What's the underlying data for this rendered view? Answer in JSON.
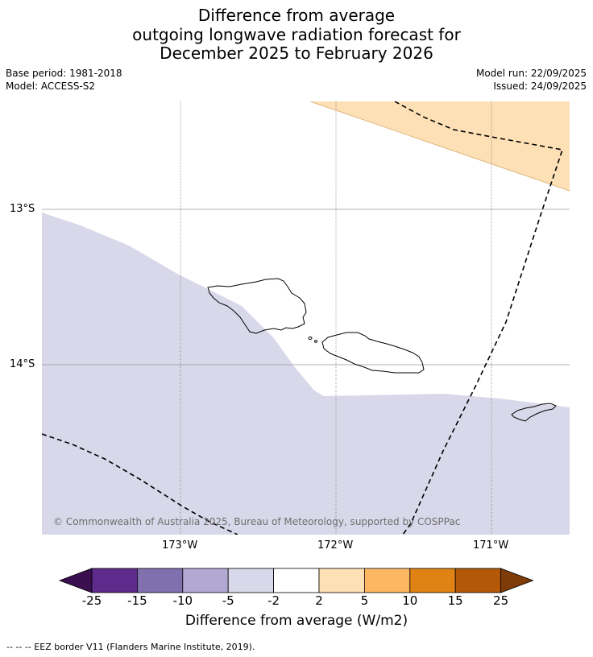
{
  "title": {
    "line1": "Difference from average",
    "line2": "outgoing longwave radiation forecast for",
    "line3": "December 2025 to February 2026"
  },
  "meta": {
    "base_period": "Base period: 1981-2018",
    "model": "Model: ACCESS-S2",
    "model_run": "Model run: 22/09/2025",
    "issued": "Issued: 24/09/2025"
  },
  "map": {
    "lat_labels": [
      "13°S",
      "14°S"
    ],
    "lon_labels": [
      "173°W",
      "172°W",
      "171°W"
    ],
    "credit": "© Commonwealth of Australia 2025, Bureau of Meteorology, supported by COSPPac",
    "colors": {
      "anomaly_positive": "#fde0b5",
      "anomaly_negative": "#d8d8ea",
      "coast": "#000000",
      "eez": "#000000"
    }
  },
  "colorbar": {
    "title": "Difference from average (W/m2)",
    "ticks": [
      "-25",
      "-15",
      "-10",
      "-5",
      "-2",
      "2",
      "5",
      "10",
      "15",
      "25"
    ],
    "colors": [
      "#3b0f4f",
      "#5e2a8c",
      "#8070ae",
      "#b1a9d2",
      "#d8d8ea",
      "#ffffff",
      "#fde0b5",
      "#fdb763",
      "#e08214",
      "#b35806",
      "#7f3b08"
    ]
  },
  "footer": "--  --  -- EEZ border V11 (Flanders Marine Institute, 2019)."
}
